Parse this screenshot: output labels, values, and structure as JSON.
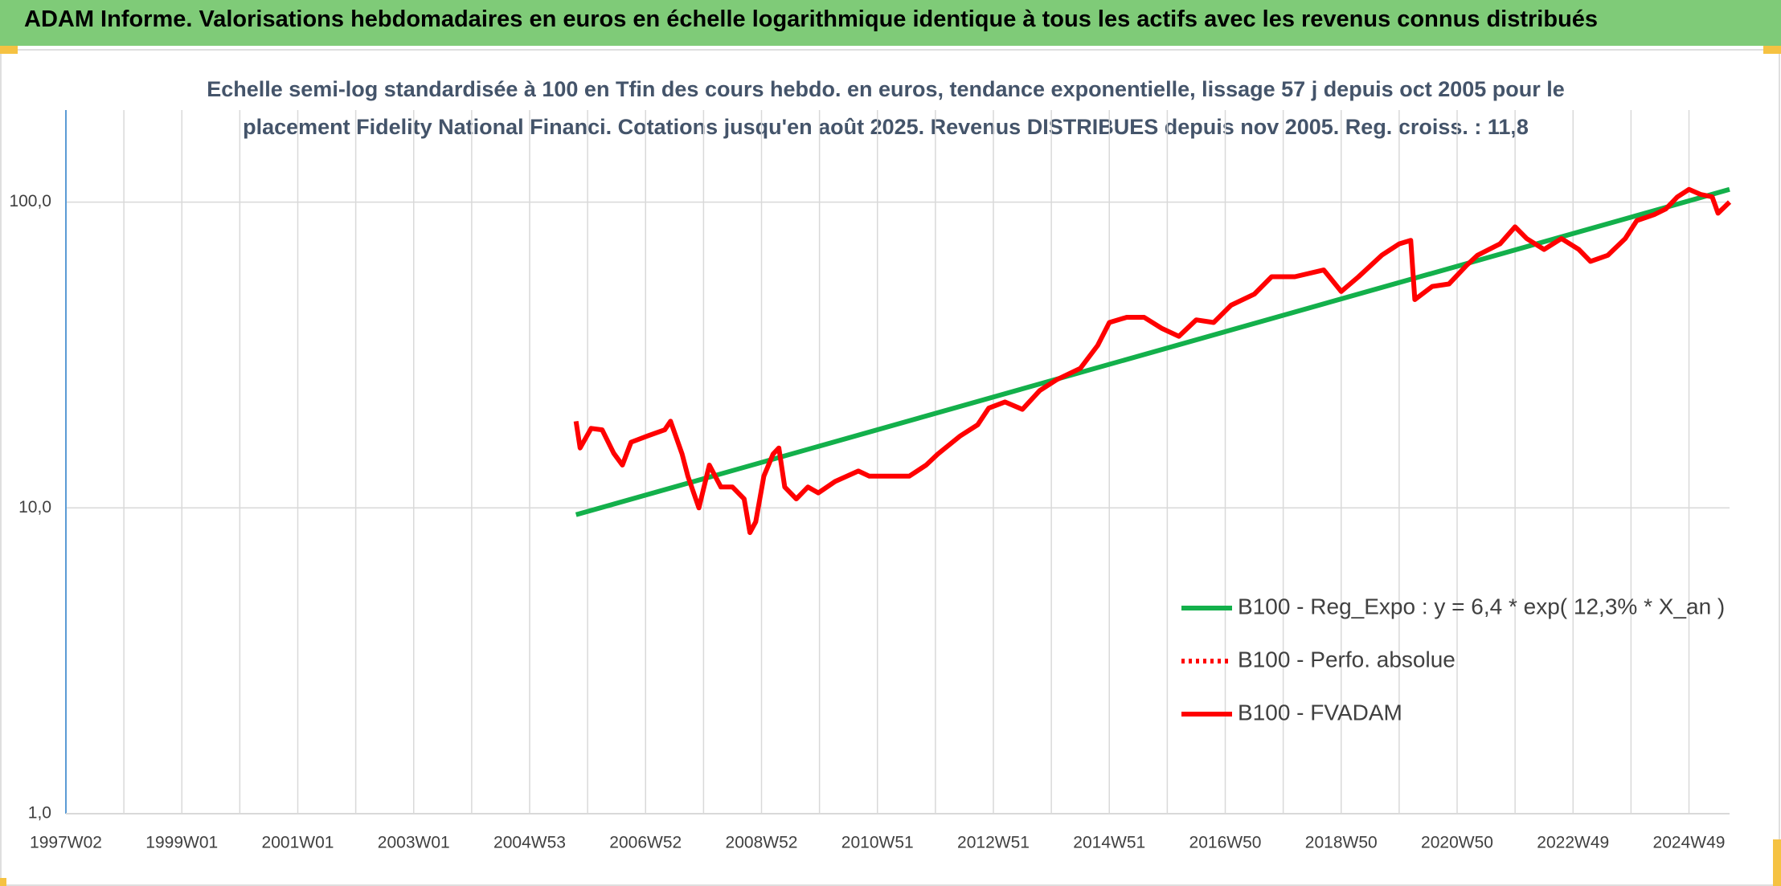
{
  "header": {
    "title": "ADAM Informe. Valorisations hebdomadaires en euros en échelle logarithmique identique à tous les actifs avec les revenus connus distribués"
  },
  "chart_data": {
    "type": "line",
    "title": [
      "Echelle semi-log standardisée à 100 en Tfin des cours hebdo. en euros, tendance exponentielle, lissage 57 j depuis oct 2005 pour le",
      "placement Fidelity National Financi. Cotations jusqu'en août 2025. Revenus DISTRIBUES depuis nov 2005. Reg. croiss. : 11,8"
    ],
    "log_y": true,
    "grid": true,
    "xlim": [
      1997,
      2025.7
    ],
    "xticks": [
      {
        "value": 1997,
        "label": "1997W02"
      },
      {
        "value": 1999,
        "label": "1999W01"
      },
      {
        "value": 2001,
        "label": "2001W01"
      },
      {
        "value": 2003,
        "label": "2003W01"
      },
      {
        "value": 2005,
        "label": "2004W53"
      },
      {
        "value": 2007,
        "label": "2006W52"
      },
      {
        "value": 2009,
        "label": "2008W52"
      },
      {
        "value": 2011,
        "label": "2010W51"
      },
      {
        "value": 2013,
        "label": "2012W51"
      },
      {
        "value": 2015,
        "label": "2014W51"
      },
      {
        "value": 2017,
        "label": "2016W50"
      },
      {
        "value": 2019,
        "label": "2018W50"
      },
      {
        "value": 2021,
        "label": "2020W50"
      },
      {
        "value": 2023,
        "label": "2022W49"
      },
      {
        "value": 2025,
        "label": "2024W49"
      }
    ],
    "ylim": [
      1,
      200
    ],
    "yticks": [
      {
        "value": 1,
        "label": "1,0"
      },
      {
        "value": 10,
        "label": "10,0"
      },
      {
        "value": 100,
        "label": "100,0"
      }
    ],
    "series": [
      {
        "name": "B100 - Reg_Expo : y = 6,4 * exp( 12,3% *  X_an )",
        "color": "#13b04b",
        "style": "solid",
        "x": [
          2005.8,
          2025.7
        ],
        "values": [
          9.5,
          110
        ]
      },
      {
        "name": "B100 - Perfo. absolue",
        "color": "#ff0000",
        "style": "dotted",
        "x": [],
        "values": []
      },
      {
        "name": "B100 - FVADAM",
        "color": "#ff0000",
        "style": "solid",
        "x": [
          2005.8,
          2005.87,
          2006.06,
          2006.25,
          2006.45,
          2006.6,
          2006.75,
          2007.04,
          2007.33,
          2007.43,
          2007.63,
          2007.73,
          2007.92,
          2008.1,
          2008.3,
          2008.5,
          2008.7,
          2008.8,
          2008.9,
          2009.04,
          2009.2,
          2009.3,
          2009.4,
          2009.6,
          2009.8,
          2009.98,
          2010.27,
          2010.67,
          2010.86,
          2011.25,
          2011.55,
          2011.84,
          2012.04,
          2012.43,
          2012.73,
          2012.92,
          2013.2,
          2013.5,
          2013.8,
          2014.1,
          2014.5,
          2014.8,
          2015.0,
          2015.3,
          2015.6,
          2015.9,
          2016.2,
          2016.5,
          2016.8,
          2017.1,
          2017.5,
          2017.8,
          2018.2,
          2018.7,
          2019.0,
          2019.3,
          2019.7,
          2020.0,
          2020.2,
          2020.27,
          2020.57,
          2020.86,
          2021.16,
          2021.35,
          2021.74,
          2022.0,
          2022.2,
          2022.5,
          2022.8,
          2023.1,
          2023.3,
          2023.6,
          2023.9,
          2024.1,
          2024.4,
          2024.6,
          2024.8,
          2025.0,
          2025.2,
          2025.4,
          2025.5,
          2025.7
        ],
        "values": [
          19.2,
          15.7,
          18.2,
          18,
          15.1,
          13.8,
          16.4,
          17.2,
          18,
          19.2,
          15,
          12.7,
          10,
          13.8,
          11.7,
          11.7,
          10.7,
          8.3,
          9,
          12.7,
          15,
          15.7,
          11.7,
          10.7,
          11.7,
          11.2,
          12.2,
          13.2,
          12.7,
          12.7,
          12.7,
          13.8,
          15,
          17.2,
          18.7,
          21.2,
          22.2,
          21,
          24.2,
          26.3,
          28.6,
          34,
          40.4,
          42,
          42,
          38.7,
          36.4,
          41.2,
          40.4,
          46,
          50,
          57,
          57,
          60,
          51,
          57,
          67,
          73,
          75,
          48,
          53,
          54,
          62,
          67,
          73,
          83,
          76,
          70,
          76,
          70,
          64,
          67,
          76,
          87,
          91,
          95,
          104,
          110,
          106,
          104,
          92,
          100
        ]
      }
    ]
  }
}
